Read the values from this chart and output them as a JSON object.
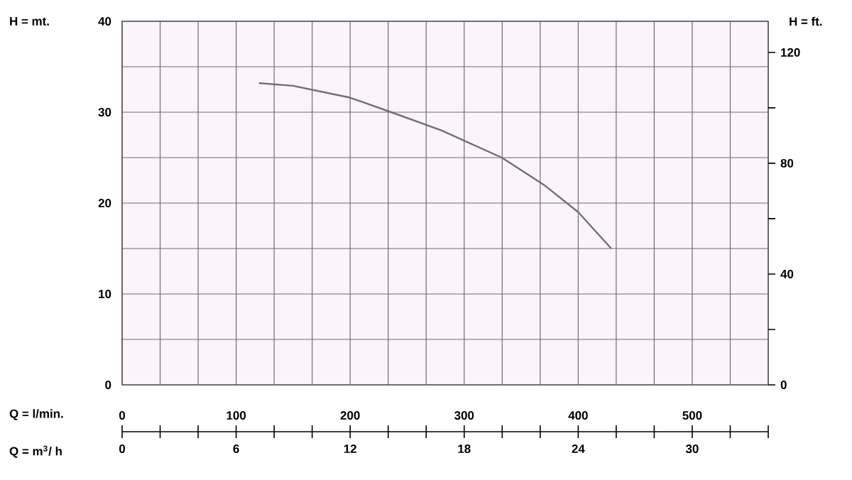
{
  "chart_data": {
    "type": "line",
    "xlabel": "Q = l/min.",
    "ylabel": "H = mt.",
    "y2label": "H = ft.",
    "x2label": "Q = m$^{3}$/ h",
    "x": [
      120,
      150,
      200,
      236,
      280,
      333,
      370,
      400,
      429
    ],
    "series": [
      {
        "color": "#707070",
        "values": [
          33.2,
          32.9,
          31.6,
          30,
          28,
          25,
          22,
          19,
          15
        ]
      }
    ],
    "xlim": [
      0,
      566.67
    ],
    "xticks": [
      0,
      100,
      200,
      300,
      400,
      500
    ],
    "x2lim": [
      0,
      34
    ],
    "x2ticks": [
      0,
      {
        "value": 2,
        "label": null
      },
      {
        "value": 4,
        "label": null
      },
      6,
      {
        "value": 8,
        "label": null
      },
      {
        "value": 10,
        "label": null
      },
      12,
      {
        "value": 14,
        "label": null
      },
      {
        "value": 16,
        "label": null
      },
      18,
      {
        "value": 20,
        "label": null
      },
      {
        "value": 22,
        "label": null
      },
      24,
      {
        "value": 26,
        "label": null
      },
      {
        "value": 28,
        "label": null
      },
      30,
      {
        "value": 32,
        "label": null
      },
      {
        "value": 34,
        "label": null
      }
    ],
    "ylim": [
      0,
      40
    ],
    "yticks": [
      0,
      {
        "value": 5,
        "label": null
      },
      10,
      {
        "value": 15,
        "label": null
      },
      20,
      {
        "value": 25,
        "label": null
      },
      30,
      {
        "value": 35,
        "label": null
      },
      40
    ],
    "y2lim": [
      0,
      131.23
    ],
    "y2ticks": [
      0,
      {
        "value": 20,
        "label": null
      },
      40,
      {
        "value": 60,
        "label": null
      },
      80,
      {
        "value": 100,
        "label": null
      },
      120
    ],
    "grid": true,
    "line_style": "solid",
    "marker": "none"
  }
}
